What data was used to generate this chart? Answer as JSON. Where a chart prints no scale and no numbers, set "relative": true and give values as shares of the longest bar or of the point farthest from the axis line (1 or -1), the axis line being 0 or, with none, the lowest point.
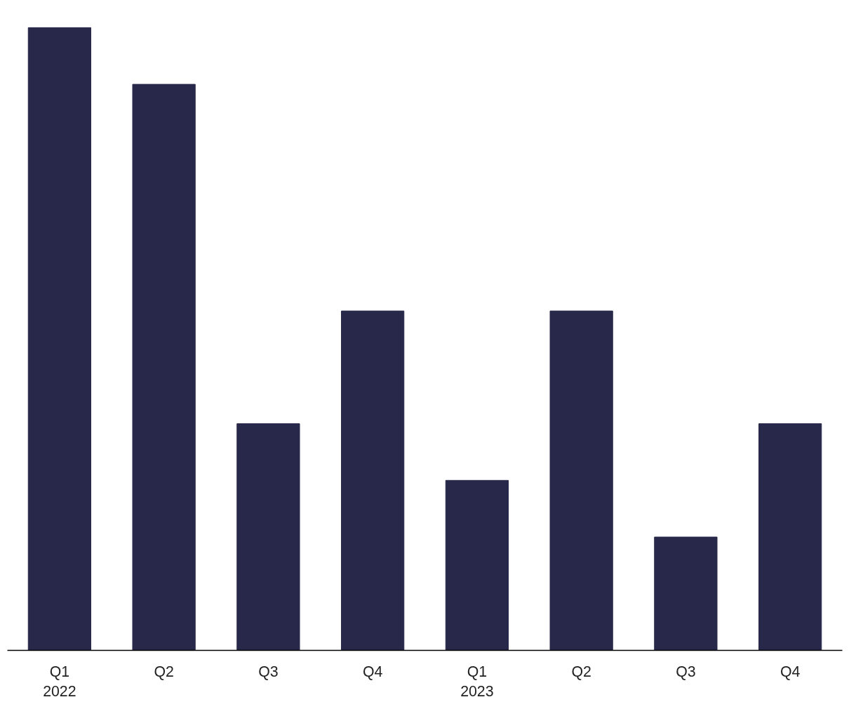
{
  "chart_data": {
    "type": "bar",
    "relative": true,
    "categories": [
      "Q1\n2022",
      "Q2",
      "Q3",
      "Q4",
      "Q1\n2023",
      "Q2",
      "Q3",
      "Q4"
    ],
    "values": [
      1,
      0.909,
      0.364,
      0.545,
      0.273,
      0.545,
      0.182,
      0.364
    ],
    "color": "#28284a",
    "grid": false
  }
}
